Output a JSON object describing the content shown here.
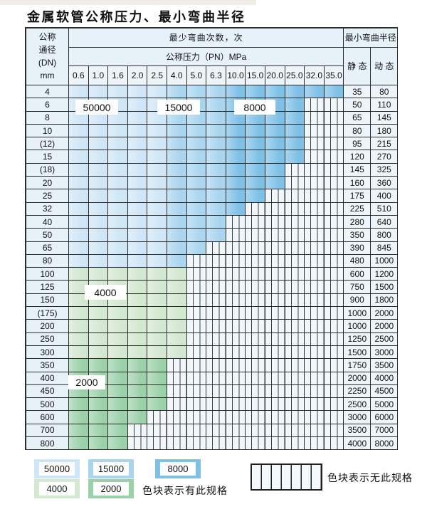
{
  "title": "金属软管公称压力、最小弯曲半径",
  "header": {
    "dn_lines": [
      "公称",
      "通径",
      "(DN)",
      "mm"
    ],
    "bend_count": "最少弯曲次数，次",
    "pressure": "公称压力（PN）MPa",
    "min_radius": "最小弯曲半径",
    "static": "静 态",
    "dynamic": "动 态"
  },
  "pressures": [
    "0.6",
    "1.0",
    "1.6",
    "2.0",
    "2.5",
    "4.0",
    "5.0",
    "6.3",
    "10.0",
    "15.0",
    "20.0",
    "25.0",
    "32.0",
    "35.0"
  ],
  "colors": {
    "bl": "#cfe6f6",
    "bm": "#a9d5ef",
    "bd": "#7fc0e7",
    "gl": "#d2e8d0",
    "gm": "#9bd1a9"
  },
  "rows": [
    {
      "dn": "4",
      "zones": [
        [
          "bl",
          5
        ],
        [
          "bm",
          8
        ],
        [
          "bd",
          14
        ]
      ],
      "static": "35",
      "dynamic": "80"
    },
    {
      "dn": "6",
      "zones": [
        [
          "bl",
          5
        ],
        [
          "bm",
          8
        ],
        [
          "bd",
          12
        ]
      ],
      "static": "50",
      "dynamic": "110"
    },
    {
      "dn": "8",
      "zones": [
        [
          "bl",
          5
        ],
        [
          "bm",
          8
        ],
        [
          "bd",
          12
        ]
      ],
      "static": "65",
      "dynamic": "145"
    },
    {
      "dn": "10",
      "zones": [
        [
          "bl",
          5
        ],
        [
          "bm",
          8
        ],
        [
          "bd",
          12
        ]
      ],
      "static": "80",
      "dynamic": "180"
    },
    {
      "dn": "(12)",
      "zones": [
        [
          "bl",
          5
        ],
        [
          "bm",
          8
        ],
        [
          "bd",
          12
        ]
      ],
      "static": "95",
      "dynamic": "215"
    },
    {
      "dn": "15",
      "zones": [
        [
          "bl",
          5
        ],
        [
          "bm",
          8
        ],
        [
          "bd",
          12
        ]
      ],
      "static": "120",
      "dynamic": "270"
    },
    {
      "dn": "(18)",
      "zones": [
        [
          "bl",
          5
        ],
        [
          "bm",
          8
        ],
        [
          "bd",
          11
        ]
      ],
      "static": "145",
      "dynamic": "325"
    },
    {
      "dn": "20",
      "zones": [
        [
          "bl",
          5
        ],
        [
          "bm",
          8
        ],
        [
          "bd",
          11
        ]
      ],
      "static": "160",
      "dynamic": "360"
    },
    {
      "dn": "25",
      "zones": [
        [
          "bl",
          5
        ],
        [
          "bm",
          8
        ],
        [
          "bd",
          10
        ]
      ],
      "static": "175",
      "dynamic": "400"
    },
    {
      "dn": "32",
      "zones": [
        [
          "bl",
          5
        ],
        [
          "bm",
          8
        ],
        [
          "bd",
          9
        ]
      ],
      "static": "225",
      "dynamic": "510"
    },
    {
      "dn": "40",
      "zones": [
        [
          "bl",
          5
        ],
        [
          "bm",
          8
        ]
      ],
      "static": "280",
      "dynamic": "640"
    },
    {
      "dn": "50",
      "zones": [
        [
          "bl",
          5
        ],
        [
          "bm",
          8
        ]
      ],
      "static": "350",
      "dynamic": "800"
    },
    {
      "dn": "65",
      "zones": [
        [
          "bl",
          5
        ],
        [
          "bm",
          7
        ]
      ],
      "static": "390",
      "dynamic": "845"
    },
    {
      "dn": "80",
      "zones": [
        [
          "bl",
          5
        ],
        [
          "bm",
          6
        ]
      ],
      "static": "480",
      "dynamic": "1000"
    },
    {
      "dn": "100",
      "zones": [
        [
          "gl",
          6
        ]
      ],
      "static": "600",
      "dynamic": "1200"
    },
    {
      "dn": "125",
      "zones": [
        [
          "gl",
          6
        ]
      ],
      "static": "750",
      "dynamic": "1500"
    },
    {
      "dn": "150",
      "zones": [
        [
          "gl",
          6
        ]
      ],
      "static": "900",
      "dynamic": "1800"
    },
    {
      "dn": "(175)",
      "zones": [
        [
          "gl",
          6
        ]
      ],
      "static": "1000",
      "dynamic": "2000"
    },
    {
      "dn": "200",
      "zones": [
        [
          "gl",
          6
        ]
      ],
      "static": "1000",
      "dynamic": "2000"
    },
    {
      "dn": "250",
      "zones": [
        [
          "gl",
          6
        ]
      ],
      "static": "1250",
      "dynamic": "2500"
    },
    {
      "dn": "300",
      "zones": [
        [
          "gl",
          6
        ]
      ],
      "static": "1500",
      "dynamic": "3000"
    },
    {
      "dn": "350",
      "zones": [
        [
          "gm",
          5
        ]
      ],
      "static": "1750",
      "dynamic": "3500"
    },
    {
      "dn": "400",
      "zones": [
        [
          "gm",
          5
        ]
      ],
      "static": "2000",
      "dynamic": "4000"
    },
    {
      "dn": "450",
      "zones": [
        [
          "gm",
          5
        ]
      ],
      "static": "2250",
      "dynamic": "4500"
    },
    {
      "dn": "500",
      "zones": [
        [
          "gm",
          5
        ]
      ],
      "static": "2500",
      "dynamic": "5000"
    },
    {
      "dn": "600",
      "zones": [
        [
          "gm",
          4
        ]
      ],
      "static": "3000",
      "dynamic": "6000"
    },
    {
      "dn": "700",
      "zones": [
        [
          "gm",
          3
        ]
      ],
      "static": "3500",
      "dynamic": "7000"
    },
    {
      "dn": "800",
      "zones": [
        [
          "gm",
          3
        ]
      ],
      "static": "4000",
      "dynamic": "8000"
    }
  ],
  "zone_labels": [
    {
      "text": "50000"
    },
    {
      "text": "15000"
    },
    {
      "text": "8000"
    },
    {
      "text": "4000"
    },
    {
      "text": "2000"
    }
  ],
  "legend": {
    "swatches": [
      {
        "label": "50000",
        "color": "#cfe6f6"
      },
      {
        "label": "15000",
        "color": "#a9d5ef"
      },
      {
        "label": "8000",
        "color": "#7fc0e7"
      },
      {
        "label": "4000",
        "color": "#d2e8d0"
      },
      {
        "label": "2000",
        "color": "#9bd1a9"
      }
    ],
    "has_spec_text": "色块表示有此规格",
    "no_spec_text": "色块表示无此规格"
  }
}
